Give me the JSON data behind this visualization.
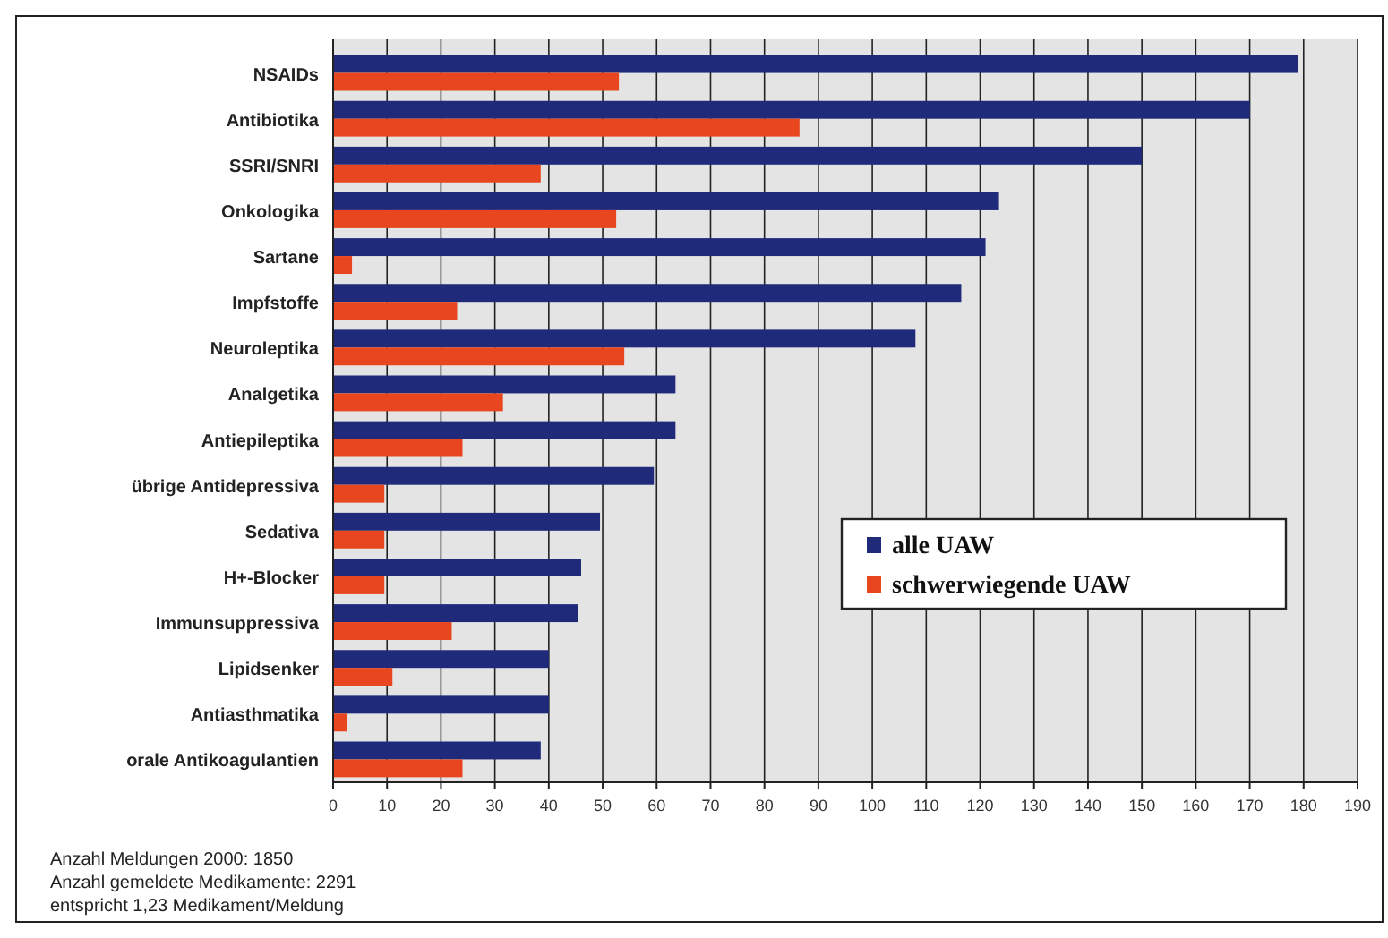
{
  "chart_data": {
    "type": "bar",
    "orientation": "horizontal",
    "categories": [
      "NSAIDs",
      "Antibiotika",
      "SSRI/SNRI",
      "Onkologika",
      "Sartane",
      "Impfstoffe",
      "Neuroleptika",
      "Analgetika",
      "Antiepileptika",
      "übrige Antidepressiva",
      "Sedativa",
      "H+-Blocker",
      "Immunsuppressiva",
      "Lipidsenker",
      "Antiasthmatika",
      "orale Antikoagulantien"
    ],
    "series": [
      {
        "name": "alle UAW",
        "color": "#1f2a7a",
        "values": [
          179,
          170,
          150,
          123.5,
          121,
          116.5,
          108,
          63.5,
          63.5,
          59.5,
          49.5,
          46,
          45.5,
          40,
          40,
          38.5
        ]
      },
      {
        "name": "schwerwiegende UAW",
        "color": "#e8461e",
        "values": [
          53,
          86.5,
          38.5,
          52.5,
          3.5,
          23,
          54,
          31.5,
          24,
          9.5,
          9.5,
          9.5,
          22,
          11,
          2.5,
          24
        ]
      }
    ],
    "xlim": [
      0,
      190
    ],
    "xticks": [
      0,
      10,
      20,
      30,
      40,
      50,
      60,
      70,
      80,
      90,
      100,
      110,
      120,
      130,
      140,
      150,
      160,
      170,
      180,
      190
    ],
    "grid": "x",
    "legend": "bottom right",
    "annotations": [
      "Anzahl Meldungen 2000: 1850",
      "Anzahl gemeldete Medikamente: 2291",
      "entspricht 1,23 Medikament/Meldung"
    ]
  }
}
